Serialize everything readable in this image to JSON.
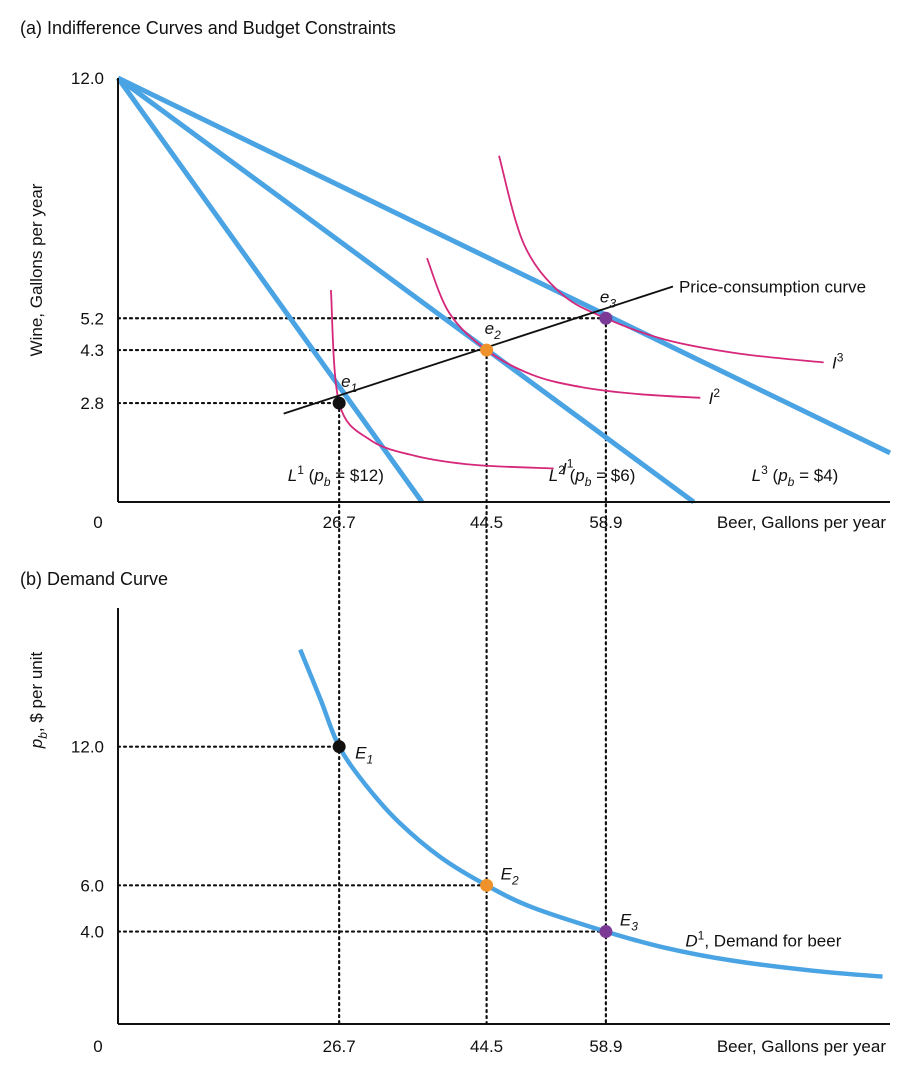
{
  "colors": {
    "budget_line": "#4aa3e3",
    "indifference": "#d6287a",
    "pcc": "#111111",
    "demand": "#4aa3e3",
    "point1": "#111111",
    "point2": "#f0922b",
    "point3": "#7b3a96",
    "guide": "#111111"
  },
  "chart_data": [
    {
      "type": "line",
      "title": "(a) Indifference Curves and Budget Constraints",
      "ylabel": "Wine, Gallons per year",
      "xlabel": "Beer, Gallons per year",
      "origin_label": "0",
      "xlim": [
        0,
        93.2
      ],
      "ylim": [
        0,
        12.0
      ],
      "grid": false,
      "x_ticks": [
        {
          "value": 26.7,
          "label": "26.7"
        },
        {
          "value": 44.5,
          "label": "44.5"
        },
        {
          "value": 58.9,
          "label": "58.9"
        }
      ],
      "y_ticks": [
        {
          "value": 12.0,
          "label": "12.0"
        },
        {
          "value": 5.2,
          "label": "5.2"
        },
        {
          "value": 4.3,
          "label": "4.3"
        },
        {
          "value": 2.8,
          "label": "2.8"
        }
      ],
      "budget_lines": [
        {
          "id": "L1",
          "head": "L",
          "sup": "1",
          "price_text": "$12",
          "label": "L1 (pb = $12)",
          "price": 12,
          "wine_intercept": 12.0,
          "beer_intercept": 36.7
        },
        {
          "id": "L2",
          "head": "L",
          "sup": "2",
          "price_text": "$6",
          "label": "L2 (pb = $6)",
          "price": 6,
          "wine_intercept": 12.0,
          "beer_intercept": 69.5
        },
        {
          "id": "L3",
          "head": "L",
          "sup": "3",
          "price_text": "$4",
          "label": "L3 (pb = $4)",
          "price": 4,
          "wine_intercept": 12.0,
          "beer_intercept": 105.4
        }
      ],
      "indifference_curves": [
        {
          "id": "I1",
          "head": "I",
          "sup": "1",
          "label": "I1",
          "points": [
            [
              25.7,
              6.0
            ],
            [
              26.7,
              2.8
            ],
            [
              30.5,
              1.75
            ],
            [
              36.0,
              1.3
            ],
            [
              43.0,
              1.05
            ],
            [
              52.6,
              0.95
            ]
          ]
        },
        {
          "id": "I2",
          "head": "I",
          "sup": "2",
          "label": "I2",
          "points": [
            [
              37.3,
              6.9
            ],
            [
              40.0,
              5.35
            ],
            [
              44.5,
              4.3
            ],
            [
              50.0,
              3.6
            ],
            [
              56.0,
              3.25
            ],
            [
              63.0,
              3.05
            ],
            [
              70.3,
              2.95
            ]
          ]
        },
        {
          "id": "I3",
          "head": "I",
          "sup": "3",
          "label": "I3",
          "points": [
            [
              46.0,
              9.8
            ],
            [
              49.0,
              7.3
            ],
            [
              53.5,
              5.9
            ],
            [
              58.9,
              5.2
            ],
            [
              66.0,
              4.6
            ],
            [
              75.0,
              4.2
            ],
            [
              85.2,
              3.95
            ]
          ]
        }
      ],
      "price_consumption_curve": {
        "label": "Price-consumption curve",
        "points": [
          [
            20.0,
            2.5
          ],
          [
            67.0,
            6.1
          ]
        ]
      },
      "equilibria": [
        {
          "id": "e1",
          "head": "e",
          "sub": "1",
          "label": "e1",
          "beer": 26.7,
          "wine": 2.8
        },
        {
          "id": "e2",
          "head": "e",
          "sub": "2",
          "label": "e2",
          "beer": 44.5,
          "wine": 4.3
        },
        {
          "id": "e3",
          "head": "e",
          "sub": "3",
          "label": "e3",
          "beer": 58.9,
          "wine": 5.2
        }
      ]
    },
    {
      "type": "line",
      "title": "(b) Demand Curve",
      "ylabel": "pb, $ per unit",
      "ylabel_head": "p",
      "ylabel_sub": "b",
      "ylabel_tail": ", $ per unit",
      "xlabel": "Beer, Gallons per year",
      "origin_label": "0",
      "xlim": [
        0,
        93.2
      ],
      "ylim": [
        0,
        18.0
      ],
      "grid": false,
      "x_ticks": [
        {
          "value": 26.7,
          "label": "26.7"
        },
        {
          "value": 44.5,
          "label": "44.5"
        },
        {
          "value": 58.9,
          "label": "58.9"
        }
      ],
      "y_ticks": [
        {
          "value": 12.0,
          "label": "12.0"
        },
        {
          "value": 6.0,
          "label": "6.0"
        },
        {
          "value": 4.0,
          "label": "4.0"
        }
      ],
      "demand_curve": {
        "name": "D1, Demand for beer",
        "head": "D",
        "sup": "1",
        "tail": ", Demand for beer",
        "points": [
          [
            22.0,
            16.2
          ],
          [
            24.5,
            14.0
          ],
          [
            26.7,
            12.0
          ],
          [
            30.0,
            10.3
          ],
          [
            34.0,
            8.7
          ],
          [
            39.0,
            7.2
          ],
          [
            44.5,
            6.0
          ],
          [
            50.0,
            5.05
          ],
          [
            58.9,
            4.0
          ],
          [
            66.0,
            3.3
          ],
          [
            74.0,
            2.75
          ],
          [
            84.0,
            2.3
          ],
          [
            92.3,
            2.05
          ]
        ]
      },
      "equilibria": [
        {
          "id": "E1",
          "head": "E",
          "sub": "1",
          "label": "E1",
          "beer": 26.7,
          "price": 12.0
        },
        {
          "id": "E2",
          "head": "E",
          "sub": "2",
          "label": "E2",
          "beer": 44.5,
          "price": 6.0
        },
        {
          "id": "E3",
          "head": "E",
          "sub": "3",
          "label": "E3",
          "beer": 58.9,
          "price": 4.0
        }
      ]
    }
  ]
}
